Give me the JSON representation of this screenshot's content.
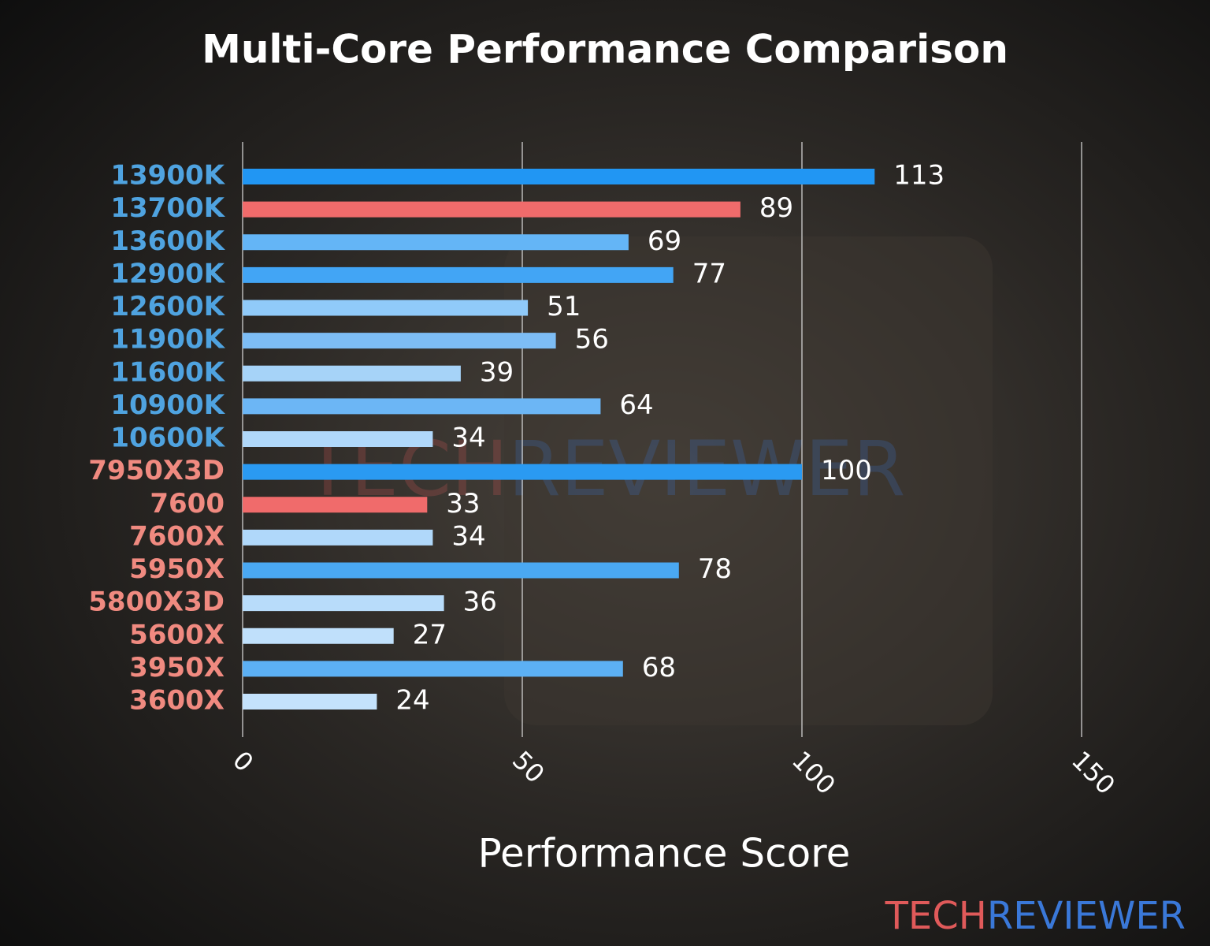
{
  "chart_data": {
    "type": "barh",
    "title": "Multi-Core Performance Comparison",
    "x_label": "Performance Score",
    "categories": [
      "13900K",
      "13700K",
      "13600K",
      "12900K",
      "12600K",
      "11900K",
      "11600K",
      "10900K",
      "10600K",
      "7950X3D",
      "7600",
      "7600X",
      "5950X",
      "5800X3D",
      "5600X",
      "3950X",
      "3600X"
    ],
    "values": [
      113,
      89,
      69,
      77,
      51,
      56,
      39,
      64,
      34,
      100,
      33,
      34,
      78,
      36,
      27,
      68,
      24
    ],
    "colors": [
      "#2196f3",
      "#f06b6b",
      "#64b5f6",
      "#42a5f5",
      "#90caf9",
      "#7dbdf5",
      "#a6d3f8",
      "#6cb6f5",
      "#b0d8fa",
      "#2a9af2",
      "#f06b6b",
      "#b0d8fa",
      "#4aa8f2",
      "#b8dcfa",
      "#c0e0fb",
      "#5cb0f4",
      "#c4e2fc"
    ],
    "label_colors": [
      "#4fa3e0",
      "#4fa3e0",
      "#4fa3e0",
      "#4fa3e0",
      "#4fa3e0",
      "#4fa3e0",
      "#4fa3e0",
      "#4fa3e0",
      "#4fa3e0",
      "#f08a80",
      "#f08a80",
      "#f08a80",
      "#f08a80",
      "#f08a80",
      "#f08a80",
      "#f08a80",
      "#f08a80"
    ],
    "xlim": [
      0,
      165
    ],
    "xticks": [
      0,
      50,
      100,
      150
    ],
    "grid": true,
    "logo": [
      "TECH",
      "REVIEWER"
    ],
    "logo_colors": [
      "#e05a5a",
      "#3a78d8"
    ]
  }
}
